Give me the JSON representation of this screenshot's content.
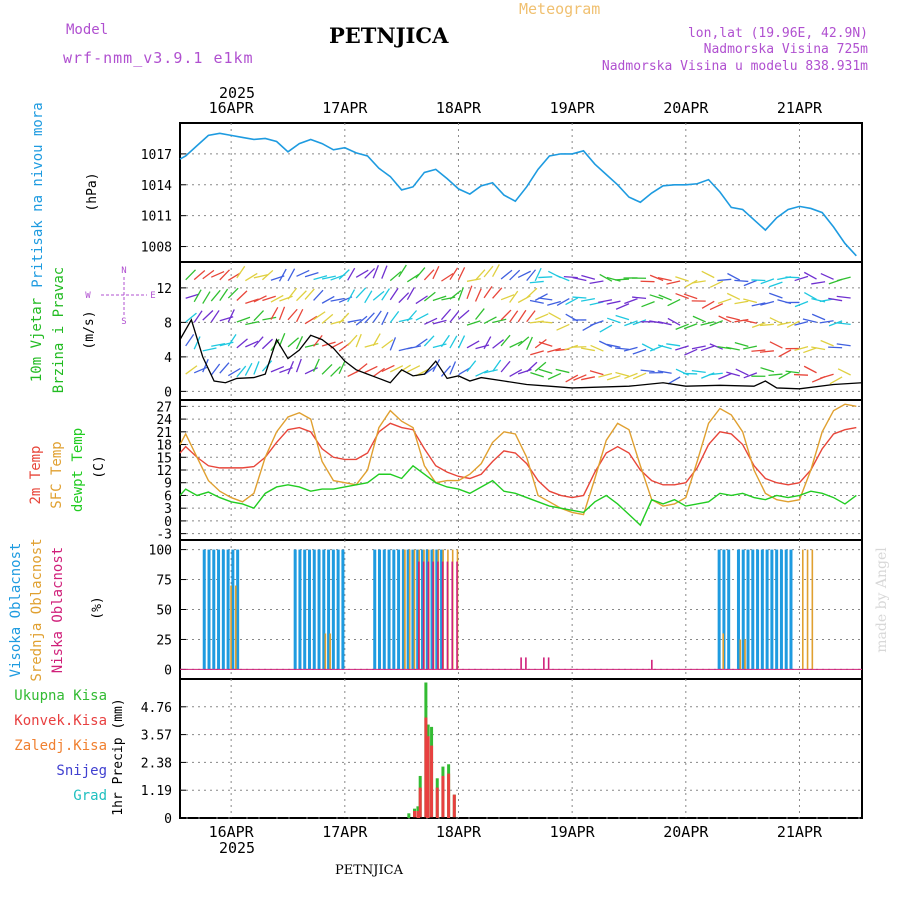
{
  "header": {
    "model_label": "Model",
    "model_name": "wrf-nmm_v3.9.1 e1km",
    "station": "PETNJICA",
    "chart_kind": "Meteogram",
    "coords": "lon,lat (19.96E, 42.9N)",
    "altitude": "Nadmorska Visina 725m",
    "model_altitude": "Nadmorska Visina u modelu 838.931m",
    "year": "2025",
    "footer_station": "PETNJICA",
    "watermark": "made by Angel"
  },
  "colors": {
    "pressure": "#1e9be0",
    "wind_label": "#22bb22",
    "temp2m": "#e8463a",
    "sfc_temp": "#e0a030",
    "dewpt": "#22cc22",
    "high_cloud": "#1e9be0",
    "mid_cloud": "#e0a030",
    "low_cloud": "#d0207a",
    "total_precip": "#33bb33",
    "conv_precip": "#e84040",
    "freezing_precip": "#f08030",
    "snow": "#4040d0",
    "hail": "#20c0c0",
    "model_text": "#b050d0",
    "meteogram_text": "#f0c070"
  },
  "chart_data": [
    {
      "type": "line",
      "panel": "pressure",
      "ylabel_lines": [
        "Pritisak na nivou mora",
        "(hPa)"
      ],
      "ylim": [
        1006.5,
        1020
      ],
      "yticks": [
        1008,
        1011,
        1014,
        1017
      ],
      "x_days": [
        "16APR",
        "17APR",
        "18APR",
        "19APR",
        "20APR",
        "21APR"
      ],
      "xlim_days": [
        15.55,
        21.55
      ],
      "series": [
        {
          "name": "",
          "x": [
            15.55,
            15.6,
            15.7,
            15.8,
            15.9,
            16.0,
            16.1,
            16.2,
            16.3,
            16.4,
            16.5,
            16.6,
            16.7,
            16.8,
            16.9,
            17.0,
            17.1,
            17.2,
            17.3,
            17.4,
            17.5,
            17.6,
            17.7,
            17.8,
            17.9,
            18.0,
            18.1,
            18.2,
            18.3,
            18.4,
            18.5,
            18.6,
            18.7,
            18.8,
            18.9,
            19.0,
            19.1,
            19.2,
            19.3,
            19.4,
            19.5,
            19.6,
            19.7,
            19.8,
            19.9,
            20.0,
            20.1,
            20.2,
            20.3,
            20.4,
            20.5,
            20.6,
            20.7,
            20.8,
            20.9,
            21.0,
            21.1,
            21.2,
            21.3,
            21.4,
            21.5
          ],
          "y": [
            1016.5,
            1016.8,
            1017.8,
            1018.8,
            1019.0,
            1018.8,
            1018.6,
            1018.4,
            1018.5,
            1018.2,
            1017.2,
            1018.0,
            1018.4,
            1018.0,
            1017.4,
            1017.6,
            1017.1,
            1016.8,
            1015.6,
            1014.8,
            1013.5,
            1013.8,
            1015.2,
            1015.5,
            1014.6,
            1013.6,
            1013.1,
            1013.9,
            1014.2,
            1013.0,
            1012.4,
            1013.8,
            1015.5,
            1016.8,
            1017.0,
            1017.0,
            1017.3,
            1016.0,
            1015.0,
            1014.0,
            1012.8,
            1012.3,
            1013.2,
            1013.9,
            1014.0,
            1014.0,
            1014.1,
            1014.5,
            1013.3,
            1011.8,
            1011.6,
            1010.6,
            1009.6,
            1010.8,
            1011.6,
            1011.9,
            1011.7,
            1011.3,
            1009.9,
            1008.3,
            1007.1
          ]
        }
      ]
    },
    {
      "type": "line",
      "panel": "wind",
      "ylabel_lines": [
        "10m Vjetar",
        "Brzina i Pravac",
        "(m/s)"
      ],
      "ylim": [
        -1,
        15
      ],
      "yticks": [
        0,
        4,
        8,
        12
      ],
      "compass": {
        "n": "N",
        "s": "S",
        "w": "W",
        "e": "E"
      },
      "series": [
        {
          "name": "",
          "x": [
            15.55,
            15.65,
            15.75,
            15.85,
            15.95,
            16.05,
            16.2,
            16.3,
            16.4,
            16.5,
            16.6,
            16.7,
            16.8,
            16.9,
            17.0,
            17.1,
            17.2,
            17.3,
            17.4,
            17.5,
            17.6,
            17.7,
            17.8,
            17.9,
            18.0,
            18.1,
            18.2,
            18.4,
            18.6,
            18.8,
            19.0,
            19.5,
            19.8,
            20.0,
            20.3,
            20.6,
            20.7,
            20.8,
            21.0,
            21.3,
            21.55
          ],
          "y": [
            6.0,
            8.3,
            4.0,
            1.2,
            1.0,
            1.5,
            1.6,
            2.0,
            6.0,
            3.8,
            4.8,
            6.5,
            6.0,
            5.0,
            3.5,
            2.5,
            2.0,
            1.5,
            1.0,
            2.5,
            1.8,
            2.0,
            3.5,
            1.5,
            1.8,
            1.2,
            1.6,
            1.2,
            0.8,
            0.6,
            0.4,
            0.6,
            1.0,
            0.6,
            0.7,
            0.6,
            1.2,
            0.4,
            0.3,
            0.8,
            1.0
          ]
        }
      ]
    },
    {
      "type": "line",
      "panel": "temperature",
      "ylabel_lines": [
        "2m Temp",
        "SFC Temp",
        "dewpt Temp",
        "(C)"
      ],
      "ylim": [
        -4.5,
        28.5
      ],
      "yticks": [
        -3,
        0,
        3,
        6,
        9,
        12,
        15,
        18,
        21,
        24,
        27
      ],
      "series": [
        {
          "name": "2m Temp",
          "x": [
            15.55,
            15.6,
            15.7,
            15.8,
            15.9,
            16.0,
            16.1,
            16.2,
            16.3,
            16.4,
            16.5,
            16.6,
            16.7,
            16.8,
            16.9,
            17.0,
            17.1,
            17.2,
            17.3,
            17.4,
            17.5,
            17.6,
            17.7,
            17.8,
            17.9,
            18.0,
            18.1,
            18.2,
            18.3,
            18.4,
            18.5,
            18.6,
            18.7,
            18.8,
            18.9,
            19.0,
            19.1,
            19.2,
            19.3,
            19.4,
            19.5,
            19.6,
            19.7,
            19.8,
            19.9,
            20.0,
            20.1,
            20.2,
            20.3,
            20.4,
            20.5,
            20.6,
            20.7,
            20.8,
            20.9,
            21.0,
            21.1,
            21.2,
            21.3,
            21.4,
            21.5
          ],
          "y": [
            16.0,
            17.5,
            15.0,
            13.0,
            12.5,
            12.5,
            12.5,
            12.8,
            15.0,
            18.5,
            21.5,
            22.0,
            21.0,
            17.0,
            15.0,
            14.5,
            14.5,
            16.0,
            21.0,
            23.0,
            22.0,
            21.5,
            17.0,
            13.0,
            11.5,
            10.5,
            10.0,
            11.0,
            14.0,
            16.5,
            16.0,
            13.5,
            9.5,
            7.0,
            6.0,
            5.5,
            6.0,
            11.5,
            16.0,
            17.5,
            16.0,
            12.0,
            9.5,
            8.5,
            8.5,
            9.0,
            12.5,
            18.0,
            21.0,
            20.5,
            18.0,
            13.0,
            10.0,
            9.0,
            8.5,
            9.0,
            12.0,
            17.0,
            20.5,
            21.5,
            22.0
          ]
        },
        {
          "name": "SFC Temp",
          "x": [
            15.55,
            15.6,
            15.7,
            15.8,
            15.9,
            16.0,
            16.1,
            16.2,
            16.3,
            16.4,
            16.5,
            16.6,
            16.7,
            16.8,
            16.9,
            17.0,
            17.1,
            17.2,
            17.3,
            17.4,
            17.5,
            17.6,
            17.7,
            17.8,
            17.9,
            18.0,
            18.1,
            18.2,
            18.3,
            18.4,
            18.5,
            18.6,
            18.7,
            18.8,
            18.9,
            19.0,
            19.1,
            19.2,
            19.3,
            19.4,
            19.5,
            19.6,
            19.7,
            19.8,
            19.9,
            20.0,
            20.1,
            20.2,
            20.3,
            20.4,
            20.5,
            20.6,
            20.7,
            20.8,
            20.9,
            21.0,
            21.1,
            21.2,
            21.3,
            21.4,
            21.5
          ],
          "y": [
            18.0,
            20.5,
            15.0,
            9.5,
            7.0,
            5.5,
            4.5,
            6.5,
            15.0,
            21.0,
            24.5,
            25.5,
            24.0,
            14.0,
            9.5,
            9.0,
            8.5,
            12.0,
            22.0,
            26.0,
            23.5,
            22.0,
            13.0,
            9.0,
            9.5,
            9.5,
            11.0,
            13.5,
            18.5,
            21.0,
            20.5,
            15.0,
            6.0,
            4.5,
            3.0,
            2.0,
            1.5,
            10.0,
            19.0,
            23.0,
            21.5,
            13.0,
            5.0,
            3.5,
            4.0,
            5.5,
            14.0,
            23.0,
            26.5,
            25.0,
            21.0,
            12.0,
            6.5,
            5.0,
            4.5,
            5.0,
            12.0,
            21.0,
            26.0,
            27.5,
            27.0
          ]
        },
        {
          "name": "dewpt Temp",
          "x": [
            15.55,
            15.6,
            15.7,
            15.8,
            15.9,
            16.0,
            16.1,
            16.2,
            16.3,
            16.4,
            16.5,
            16.6,
            16.7,
            16.8,
            16.9,
            17.0,
            17.1,
            17.2,
            17.3,
            17.4,
            17.5,
            17.6,
            17.7,
            17.8,
            17.9,
            18.0,
            18.1,
            18.2,
            18.3,
            18.4,
            18.5,
            18.6,
            18.7,
            18.8,
            18.9,
            19.0,
            19.1,
            19.2,
            19.3,
            19.4,
            19.5,
            19.6,
            19.7,
            19.8,
            19.9,
            20.0,
            20.1,
            20.2,
            20.3,
            20.4,
            20.5,
            20.6,
            20.7,
            20.8,
            20.9,
            21.0,
            21.1,
            21.2,
            21.3,
            21.4,
            21.5
          ],
          "y": [
            6.0,
            7.5,
            6.0,
            6.8,
            5.5,
            4.5,
            4.0,
            3.0,
            6.5,
            8.0,
            8.5,
            8.0,
            7.0,
            7.5,
            7.5,
            8.0,
            8.5,
            9.0,
            11.0,
            11.0,
            10.0,
            13.0,
            11.0,
            9.0,
            8.0,
            7.5,
            6.5,
            8.0,
            9.5,
            7.0,
            6.5,
            5.5,
            4.5,
            3.5,
            3.0,
            2.5,
            2.0,
            4.5,
            6.0,
            4.0,
            1.5,
            -1.0,
            5.0,
            4.0,
            5.0,
            3.5,
            4.0,
            4.5,
            6.5,
            6.0,
            6.5,
            5.5,
            5.0,
            6.0,
            5.5,
            6.0,
            7.0,
            6.5,
            5.5,
            4.0,
            6.0
          ]
        }
      ]
    },
    {
      "type": "bar",
      "panel": "cloud",
      "ylabel_lines": [
        "Visoka Oblacnost",
        "Srednja Oblacnost",
        "Niska Oblacnost",
        "(%)"
      ],
      "ylim": [
        -8,
        108
      ],
      "yticks": [
        0,
        25,
        50,
        75,
        100
      ],
      "series": [
        {
          "name": "Visoka Oblacnost",
          "periods": [
            [
              15.75,
              16.05,
              100
            ],
            [
              16.55,
              17.0,
              100
            ],
            [
              17.25,
              17.85,
              100
            ],
            [
              20.28,
              20.38,
              100
            ],
            [
              20.45,
              20.95,
              100
            ]
          ]
        },
        {
          "name": "Srednja Oblacnost",
          "periods": [
            [
              15.97,
              16.05,
              70
            ],
            [
              16.8,
              16.85,
              30
            ],
            [
              17.5,
              18.0,
              100
            ],
            [
              20.3,
              20.32,
              30
            ],
            [
              20.45,
              20.5,
              25
            ],
            [
              21.0,
              21.1,
              100
            ]
          ]
        },
        {
          "name": "Niska Oblacnost",
          "periods": [
            [
              17.6,
              17.95,
              90
            ],
            [
              18.5,
              18.55,
              10
            ],
            [
              18.7,
              18.75,
              10
            ],
            [
              19.65,
              19.68,
              8
            ]
          ]
        }
      ]
    },
    {
      "type": "bar",
      "panel": "precip",
      "ylabel_lines": [
        "1hr Precip (mm)"
      ],
      "ylim": [
        0,
        5.95
      ],
      "yticks": [
        0,
        1.19,
        2.38,
        3.57,
        4.76
      ],
      "legend": [
        "Ukupna Kisa",
        "Konvek.Kisa",
        "Zaledj.Kisa",
        "Snijeg",
        "Grad"
      ],
      "series": [
        {
          "name": "Ukupna Kisa",
          "x": [
            17.55,
            17.6,
            17.63,
            17.65,
            17.7,
            17.72,
            17.75,
            17.8,
            17.85,
            17.9,
            17.95
          ],
          "y": [
            0.2,
            0.4,
            0.5,
            1.8,
            5.8,
            4.0,
            3.9,
            1.7,
            2.2,
            2.3,
            1.0
          ]
        },
        {
          "name": "Konvek.Kisa",
          "x": [
            17.6,
            17.63,
            17.65,
            17.7,
            17.72,
            17.75,
            17.8,
            17.85,
            17.9,
            17.95
          ],
          "y": [
            0.3,
            0.3,
            1.3,
            4.3,
            3.5,
            3.1,
            1.3,
            1.8,
            1.9,
            1.0
          ]
        }
      ]
    }
  ]
}
